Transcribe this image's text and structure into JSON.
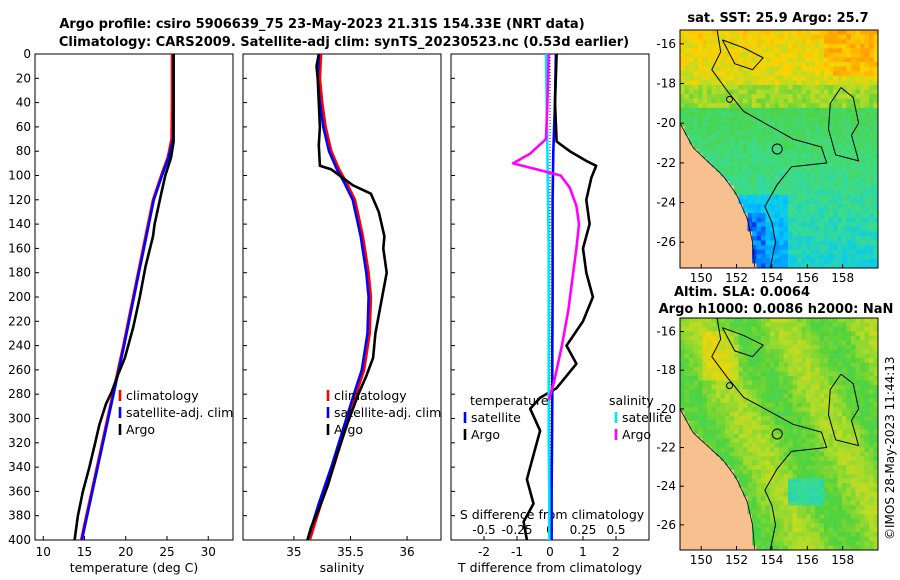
{
  "header": {
    "line1": "Argo profile: csiro 5906639_75 23-May-2023 21.31S 154.33E (NRT data)",
    "line2": "Climatology: CARS2009. Satellite-adj clim: synTS_20230523.nc (0.53d earlier)"
  },
  "colors": {
    "climatology": "#ff0000",
    "satellite": "#0000ff",
    "argo": "#000000",
    "sal_satellite": "#00e5ff",
    "sal_argo": "#ff00ff",
    "land": "#f9c08f"
  },
  "chart_data": [
    {
      "type": "line",
      "name": "temperature-profile",
      "xlabel": "temperature (deg C)",
      "ylabel": "",
      "xlim": [
        9,
        33
      ],
      "ylim": [
        400,
        0
      ],
      "xticks": [
        10,
        15,
        20,
        25,
        30
      ],
      "yticks": [
        0,
        20,
        40,
        60,
        80,
        100,
        120,
        140,
        160,
        180,
        200,
        220,
        240,
        260,
        280,
        300,
        320,
        340,
        360,
        380,
        400
      ],
      "grid": false,
      "legend_position": "lower-right",
      "legend": [
        "climatology",
        "satellite-adj. clim",
        "Argo"
      ],
      "series": [
        {
          "name": "climatology",
          "color": "#ff0000",
          "points": [
            [
              25.6,
              0
            ],
            [
              25.6,
              40
            ],
            [
              25.55,
              70
            ],
            [
              25.1,
              85
            ],
            [
              24.3,
              100
            ],
            [
              23.3,
              120
            ],
            [
              22.4,
              150
            ],
            [
              21.5,
              180
            ],
            [
              20.6,
              210
            ],
            [
              19.7,
              240
            ],
            [
              18.9,
              265
            ],
            [
              18.1,
              290
            ],
            [
              17.3,
              315
            ],
            [
              16.5,
              340
            ],
            [
              15.7,
              365
            ],
            [
              14.9,
              390
            ],
            [
              14.6,
              400
            ]
          ]
        },
        {
          "name": "satellite-adj. clim",
          "color": "#0000ff",
          "points": [
            [
              25.8,
              0
            ],
            [
              25.8,
              40
            ],
            [
              25.75,
              70
            ],
            [
              25.2,
              85
            ],
            [
              24.4,
              100
            ],
            [
              23.4,
              120
            ],
            [
              22.5,
              150
            ],
            [
              21.6,
              180
            ],
            [
              20.7,
              210
            ],
            [
              19.8,
              240
            ],
            [
              19.0,
              265
            ],
            [
              18.2,
              290
            ],
            [
              17.4,
              315
            ],
            [
              16.6,
              340
            ],
            [
              15.8,
              365
            ],
            [
              15.0,
              390
            ],
            [
              14.7,
              400
            ]
          ]
        },
        {
          "name": "Argo",
          "color": "#000000",
          "points": [
            [
              25.8,
              0
            ],
            [
              25.8,
              40
            ],
            [
              25.8,
              72
            ],
            [
              25.5,
              85
            ],
            [
              24.8,
              100
            ],
            [
              24.3,
              115
            ],
            [
              23.5,
              140
            ],
            [
              23.3,
              150
            ],
            [
              22.4,
              175
            ],
            [
              21.7,
              200
            ],
            [
              20.9,
              225
            ],
            [
              19.9,
              250
            ],
            [
              19.0,
              265
            ],
            [
              18.3,
              278
            ],
            [
              17.6,
              288
            ],
            [
              16.8,
              305
            ],
            [
              16.3,
              320
            ],
            [
              15.6,
              340
            ],
            [
              14.8,
              360
            ],
            [
              14.2,
              380
            ],
            [
              13.9,
              395
            ],
            [
              13.8,
              400
            ]
          ]
        }
      ]
    },
    {
      "type": "line",
      "name": "salinity-profile",
      "xlabel": "salinity",
      "xlim": [
        34.55,
        36.3
      ],
      "ylim": [
        400,
        0
      ],
      "xticks": [
        35,
        35.5,
        36
      ],
      "grid": false,
      "legend_position": "lower-right",
      "legend": [
        "climatology",
        "satellite-adj. clim",
        "Argo"
      ],
      "series": [
        {
          "name": "climatology",
          "color": "#ff0000",
          "points": [
            [
              35.24,
              0
            ],
            [
              35.23,
              20
            ],
            [
              35.25,
              40
            ],
            [
              35.28,
              60
            ],
            [
              35.33,
              80
            ],
            [
              35.4,
              95
            ],
            [
              35.46,
              105
            ],
            [
              35.54,
              120
            ],
            [
              35.61,
              150
            ],
            [
              35.66,
              180
            ],
            [
              35.68,
              200
            ],
            [
              35.67,
              230
            ],
            [
              35.62,
              260
            ],
            [
              35.55,
              280
            ],
            [
              35.45,
              310
            ],
            [
              35.35,
              340
            ],
            [
              35.24,
              370
            ],
            [
              35.14,
              400
            ]
          ]
        },
        {
          "name": "satellite-adj. clim",
          "color": "#0000ff",
          "points": [
            [
              35.22,
              0
            ],
            [
              35.21,
              20
            ],
            [
              35.23,
              40
            ],
            [
              35.26,
              60
            ],
            [
              35.31,
              80
            ],
            [
              35.38,
              95
            ],
            [
              35.44,
              105
            ],
            [
              35.52,
              120
            ],
            [
              35.59,
              150
            ],
            [
              35.64,
              180
            ],
            [
              35.66,
              200
            ],
            [
              35.65,
              230
            ],
            [
              35.6,
              260
            ],
            [
              35.53,
              280
            ],
            [
              35.43,
              310
            ],
            [
              35.33,
              340
            ],
            [
              35.22,
              370
            ],
            [
              35.12,
              400
            ]
          ]
        },
        {
          "name": "Argo",
          "color": "#000000",
          "points": [
            [
              35.22,
              0
            ],
            [
              35.2,
              10
            ],
            [
              35.21,
              20
            ],
            [
              35.22,
              40
            ],
            [
              35.23,
              60
            ],
            [
              35.22,
              75
            ],
            [
              35.23,
              92
            ],
            [
              35.33,
              95
            ],
            [
              35.52,
              108
            ],
            [
              35.68,
              115
            ],
            [
              35.75,
              130
            ],
            [
              35.8,
              150
            ],
            [
              35.79,
              160
            ],
            [
              35.82,
              180
            ],
            [
              35.79,
              195
            ],
            [
              35.76,
              210
            ],
            [
              35.72,
              230
            ],
            [
              35.7,
              250
            ],
            [
              35.64,
              265
            ],
            [
              35.57,
              280
            ],
            [
              35.47,
              305
            ],
            [
              35.38,
              330
            ],
            [
              35.3,
              355
            ],
            [
              35.22,
              375
            ],
            [
              35.15,
              390
            ],
            [
              35.12,
              400
            ]
          ]
        }
      ]
    },
    {
      "type": "line",
      "name": "difference-profile",
      "xlabel": "T difference from climatology",
      "xlabel_top": "S difference from climatology",
      "xlim": [
        -3,
        3
      ],
      "ylim": [
        400,
        0
      ],
      "xticks": [
        -2,
        -1,
        0,
        1,
        2
      ],
      "xticklabels": [
        "-2",
        "-1",
        "0",
        "1",
        "2"
      ],
      "sticks": [
        -0.5,
        -0.25,
        0,
        0.25,
        0.5
      ],
      "sticklabels": [
        "-0.5",
        "-0.25",
        "0",
        "0.25",
        "0.5"
      ],
      "slim": [
        -0.75,
        0.75
      ],
      "grid": false,
      "legend_position": "lower-right",
      "legend_titles": [
        "temperature",
        "salinity"
      ],
      "legend": [
        "satellite",
        "Argo",
        "satellite",
        "Argo"
      ],
      "series": [
        {
          "name": "temperature satellite",
          "color": "#0000ff",
          "points": [
            [
              0.18,
              0
            ],
            [
              0.15,
              40
            ],
            [
              0.1,
              80
            ],
            [
              0.08,
              120
            ],
            [
              0.08,
              160
            ],
            [
              0.08,
              200
            ],
            [
              0.07,
              240
            ],
            [
              0.07,
              280
            ],
            [
              0.06,
              320
            ],
            [
              0.05,
              360
            ],
            [
              0.05,
              400
            ]
          ]
        },
        {
          "name": "temperature Argo",
          "color": "#000000",
          "points": [
            [
              0.2,
              0
            ],
            [
              0.15,
              40
            ],
            [
              0.2,
              72
            ],
            [
              0.6,
              80
            ],
            [
              1.1,
              88
            ],
            [
              1.4,
              92
            ],
            [
              1.25,
              102
            ],
            [
              1.1,
              120
            ],
            [
              1.2,
              140
            ],
            [
              1.0,
              160
            ],
            [
              1.1,
              180
            ],
            [
              1.3,
              200
            ],
            [
              1.0,
              220
            ],
            [
              0.5,
              240
            ],
            [
              0.8,
              255
            ],
            [
              0.2,
              275
            ],
            [
              -0.3,
              283
            ],
            [
              -0.6,
              292
            ],
            [
              -0.3,
              310
            ],
            [
              -0.5,
              330
            ],
            [
              -0.7,
              350
            ],
            [
              -0.5,
              370
            ],
            [
              -0.8,
              385
            ],
            [
              -0.7,
              400
            ]
          ]
        },
        {
          "name": "salinity satellite",
          "color": "#00e5ff",
          "points": [
            [
              -0.03,
              0
            ],
            [
              -0.025,
              40
            ],
            [
              -0.02,
              80
            ],
            [
              -0.015,
              120
            ],
            [
              -0.01,
              160
            ],
            [
              -0.01,
              200
            ],
            [
              -0.01,
              240
            ],
            [
              -0.01,
              280
            ],
            [
              -0.01,
              320
            ],
            [
              -0.005,
              360
            ],
            [
              -0.005,
              400
            ]
          ]
        },
        {
          "name": "salinity Argo",
          "color": "#ff00ff",
          "points": [
            [
              -0.01,
              0
            ],
            [
              -0.02,
              40
            ],
            [
              -0.03,
              70
            ],
            [
              -0.15,
              82
            ],
            [
              -0.28,
              90
            ],
            [
              -0.1,
              95
            ],
            [
              0.08,
              100
            ],
            [
              0.15,
              110
            ],
            [
              0.2,
              125
            ],
            [
              0.22,
              140
            ],
            [
              0.2,
              160
            ],
            [
              0.17,
              185
            ],
            [
              0.14,
              210
            ],
            [
              0.09,
              240
            ],
            [
              0.03,
              270
            ],
            [
              -0.01,
              285
            ]
          ]
        }
      ]
    }
  ],
  "maps": [
    {
      "title1": "sat. SST: 25.9 Argo: 25.7",
      "title2": "",
      "xticks": [
        "150",
        "152",
        "154",
        "156",
        "158"
      ],
      "yticks": [
        "-16",
        "-18",
        "-20",
        "-22",
        "-24",
        "-26"
      ]
    },
    {
      "title1": "Altim. SLA: 0.0064",
      "title2": "Argo h1000: 0.0086 h2000: NaN",
      "xticks": [
        "150",
        "152",
        "154",
        "156",
        "158"
      ],
      "yticks": [
        "-16",
        "-18",
        "-20",
        "-22",
        "-24",
        "-26"
      ]
    }
  ],
  "credit": "©IMOS 28-May-2023 11:44:13"
}
